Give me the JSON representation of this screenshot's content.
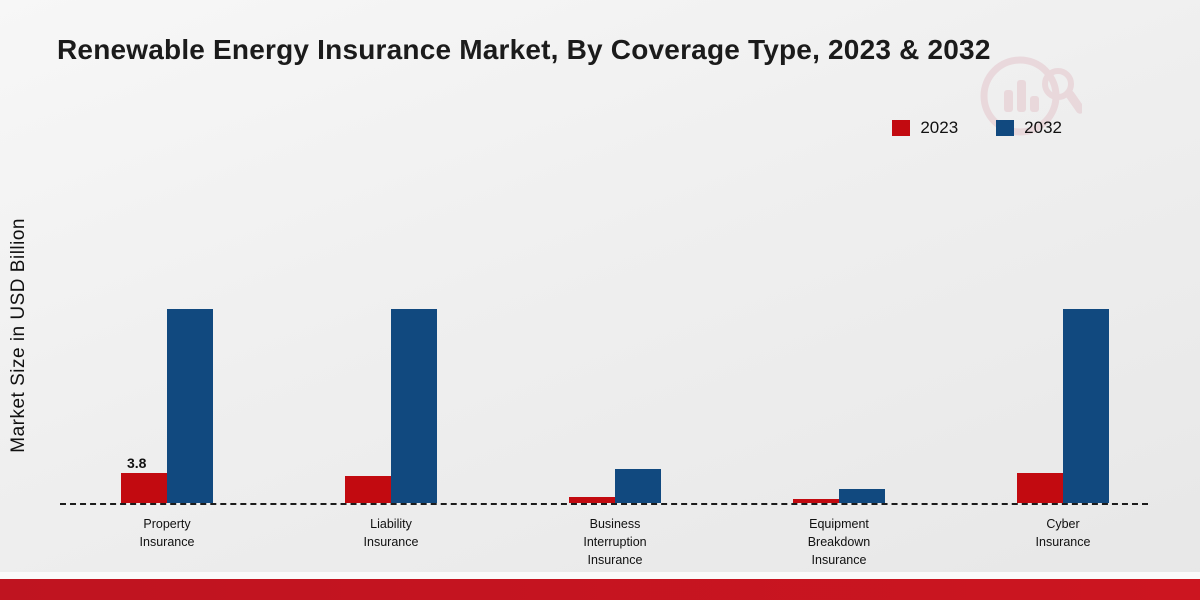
{
  "page": {
    "title": "Renewable Energy Insurance Market, By Coverage Type, 2023 & 2032",
    "ylabel": "Market Size in USD Billion"
  },
  "chart_data": {
    "type": "bar",
    "title": "Renewable Energy Insurance Market, By Coverage Type, 2023 & 2032",
    "xlabel": "",
    "ylabel": "Market Size in USD Billion",
    "ylim": [
      0,
      25
    ],
    "grid": false,
    "legend_position": "top-right",
    "baseline_style": "dashed",
    "categories": [
      "Property Insurance",
      "Liability Insurance",
      "Business Interruption Insurance",
      "Equipment Breakdown Insurance",
      "Cyber Insurance"
    ],
    "categories_display": [
      [
        "Property",
        "Insurance"
      ],
      [
        "Liability",
        "Insurance"
      ],
      [
        "Business",
        "Interruption",
        "Insurance"
      ],
      [
        "Equipment",
        "Breakdown",
        "Insurance"
      ],
      [
        "Cyber",
        "Insurance"
      ]
    ],
    "series": [
      {
        "name": "2023",
        "color": "#c20a10",
        "values": [
          3.8,
          3.4,
          0.7,
          0.5,
          3.7
        ]
      },
      {
        "name": "2032",
        "color": "#11497f",
        "values": [
          24.2,
          24.2,
          4.3,
          1.7,
          24.2
        ]
      }
    ],
    "annotations": [
      {
        "text": "3.8",
        "series_index": 0,
        "category_index": 0
      }
    ]
  }
}
